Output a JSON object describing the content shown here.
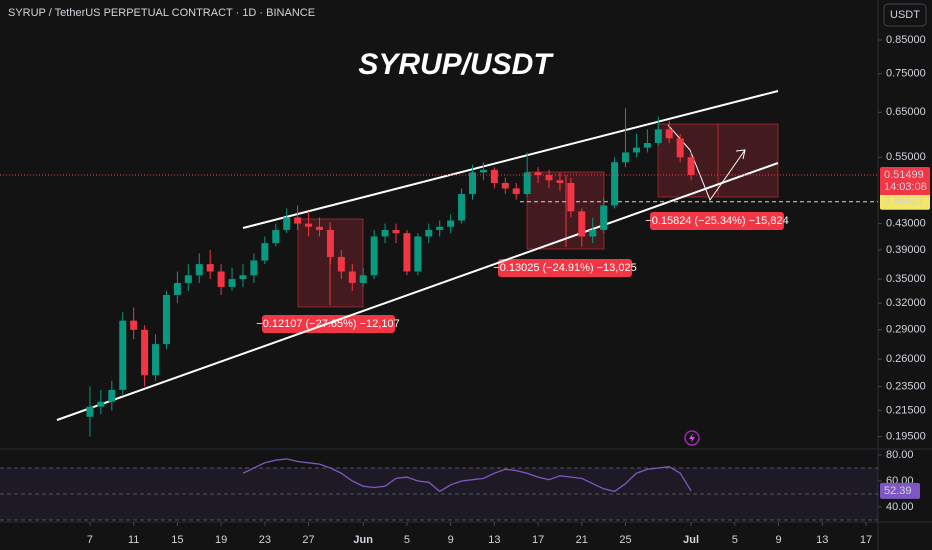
{
  "chart_data": {
    "type": "candlestick",
    "title": "SYRUP / TetherUS PERPETUAL CONTRACT · 1D · BINANCE",
    "heading": "SYRUP/USDT",
    "currency": "USDT",
    "log": true,
    "grid": false,
    "up_color": "#089981",
    "down_color": "#f23645",
    "x": [
      7,
      8,
      9,
      10,
      11,
      12,
      13,
      14,
      15,
      16,
      17,
      18,
      19,
      20,
      21,
      22,
      23,
      24,
      25,
      26,
      27,
      28,
      29,
      30,
      31,
      32,
      33,
      34,
      35,
      36,
      37,
      38,
      39,
      40,
      41,
      42,
      43,
      44,
      45,
      46,
      47,
      48,
      49,
      50,
      51,
      52,
      53,
      54,
      55,
      56,
      57,
      58,
      59,
      60,
      61,
      62
    ],
    "open": [
      0.21,
      0.218,
      0.222,
      0.232,
      0.3,
      0.29,
      0.245,
      0.275,
      0.33,
      0.345,
      0.355,
      0.37,
      0.36,
      0.34,
      0.35,
      0.355,
      0.375,
      0.4,
      0.42,
      0.44,
      0.43,
      0.425,
      0.42,
      0.38,
      0.36,
      0.345,
      0.355,
      0.41,
      0.42,
      0.415,
      0.36,
      0.41,
      0.42,
      0.425,
      0.435,
      0.48,
      0.52,
      0.525,
      0.5,
      0.49,
      0.48,
      0.52,
      0.515,
      0.505,
      0.5,
      0.45,
      0.41,
      0.42,
      0.46,
      0.54,
      0.56,
      0.57,
      0.58,
      0.61,
      0.59,
      0.55
    ],
    "high": [
      0.235,
      0.232,
      0.24,
      0.31,
      0.315,
      0.295,
      0.285,
      0.335,
      0.36,
      0.37,
      0.385,
      0.39,
      0.37,
      0.365,
      0.37,
      0.385,
      0.41,
      0.43,
      0.455,
      0.46,
      0.45,
      0.44,
      0.425,
      0.39,
      0.37,
      0.365,
      0.42,
      0.43,
      0.43,
      0.42,
      0.415,
      0.43,
      0.435,
      0.445,
      0.49,
      0.535,
      0.54,
      0.53,
      0.51,
      0.5,
      0.56,
      0.53,
      0.525,
      0.52,
      0.51,
      0.455,
      0.44,
      0.475,
      0.55,
      0.66,
      0.6,
      0.61,
      0.64,
      0.63,
      0.6,
      0.56
    ],
    "low": [
      0.195,
      0.212,
      0.215,
      0.228,
      0.28,
      0.235,
      0.24,
      0.27,
      0.32,
      0.335,
      0.345,
      0.35,
      0.33,
      0.335,
      0.34,
      0.345,
      0.37,
      0.395,
      0.415,
      0.42,
      0.41,
      0.41,
      0.37,
      0.35,
      0.335,
      0.34,
      0.35,
      0.4,
      0.4,
      0.355,
      0.355,
      0.4,
      0.41,
      0.415,
      0.43,
      0.47,
      0.505,
      0.49,
      0.48,
      0.47,
      0.475,
      0.5,
      0.49,
      0.485,
      0.44,
      0.395,
      0.4,
      0.415,
      0.455,
      0.53,
      0.55,
      0.56,
      0.575,
      0.58,
      0.54,
      0.505
    ],
    "close": [
      0.218,
      0.222,
      0.232,
      0.3,
      0.29,
      0.245,
      0.275,
      0.33,
      0.345,
      0.355,
      0.37,
      0.36,
      0.34,
      0.35,
      0.355,
      0.375,
      0.4,
      0.42,
      0.44,
      0.43,
      0.425,
      0.42,
      0.38,
      0.36,
      0.345,
      0.355,
      0.41,
      0.42,
      0.415,
      0.36,
      0.41,
      0.42,
      0.425,
      0.435,
      0.48,
      0.52,
      0.525,
      0.5,
      0.49,
      0.48,
      0.52,
      0.515,
      0.505,
      0.5,
      0.45,
      0.41,
      0.42,
      0.46,
      0.54,
      0.56,
      0.57,
      0.58,
      0.61,
      0.59,
      0.55,
      0.51499
    ],
    "ylim": [
      0.187,
      0.986
    ],
    "yticks": [
      {
        "value": 0.85,
        "label": "0.85000"
      },
      {
        "value": 0.75,
        "label": "0.75000"
      },
      {
        "value": 0.65,
        "label": "0.65000"
      },
      {
        "value": 0.55,
        "label": "0.55000"
      },
      {
        "value": 0.43,
        "label": "0.43000"
      },
      {
        "value": 0.39,
        "label": "0.39000"
      },
      {
        "value": 0.35,
        "label": "0.35000"
      },
      {
        "value": 0.32,
        "label": "0.32000"
      },
      {
        "value": 0.29,
        "label": "0.29000"
      },
      {
        "value": 0.26,
        "label": "0.26000"
      },
      {
        "value": 0.235,
        "label": "0.23500"
      },
      {
        "value": 0.215,
        "label": "0.21500"
      },
      {
        "value": 0.195,
        "label": "0.19500"
      }
    ],
    "xlim": [
      -1.23,
      79.1
    ],
    "xticks": [
      7,
      11,
      15,
      19,
      23,
      27,
      {
        "value": 32,
        "label": "Jun"
      },
      {
        "value": 36,
        "label": "5"
      },
      {
        "value": 40,
        "label": "9"
      },
      {
        "value": 44,
        "label": "13"
      },
      {
        "value": 48,
        "label": "17"
      },
      {
        "value": 52,
        "label": "21"
      },
      {
        "value": 56,
        "label": "25"
      },
      {
        "value": 62,
        "label": "Jul"
      },
      {
        "value": 66,
        "label": "5"
      },
      {
        "value": 70,
        "label": "9"
      },
      {
        "value": 74,
        "label": "13"
      },
      {
        "value": 78,
        "label": "17"
      }
    ],
    "countdown": "14:03:08",
    "marker_price": {
      "value": 0.46627,
      "label": "0.46627"
    },
    "annotations": [
      "−0.12107 (−27.65%) −12,107",
      "−0.13025 (−24.91%) −13,025",
      "−0.15824 (−25.34%) −15,824"
    ],
    "rsi": {
      "color": "#7e57c2",
      "values": [
        null,
        null,
        null,
        null,
        null,
        null,
        null,
        null,
        null,
        null,
        null,
        null,
        null,
        null,
        66,
        70,
        74,
        76,
        77,
        75,
        74,
        73,
        70,
        66,
        60,
        56,
        55,
        56,
        62,
        63,
        60,
        59,
        52,
        57,
        60,
        61,
        62,
        66,
        69,
        68,
        66,
        63,
        61,
        64,
        63,
        62,
        58,
        54,
        52,
        58,
        66,
        69,
        70,
        71,
        66,
        52.39
      ],
      "ylim": [
        29.2,
        84.6
      ],
      "yticks": [
        {
          "value": 80,
          "label": "80.00"
        },
        {
          "value": 60,
          "label": "60.00"
        },
        {
          "value": 40,
          "label": "40.00"
        }
      ],
      "bands": [
        70,
        50,
        30
      ]
    }
  }
}
